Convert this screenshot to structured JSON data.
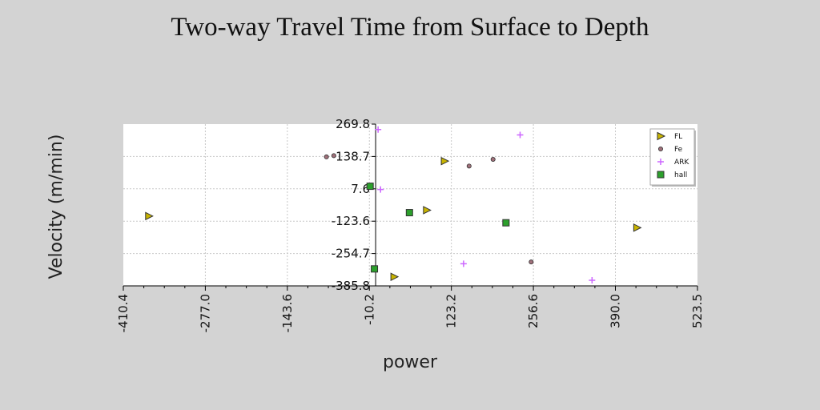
{
  "chart_data": {
    "type": "scatter",
    "title": "Two-way Travel Time from Surface to Depth",
    "xlabel": "power",
    "ylabel": "Velocity (m/min)",
    "xlim": [
      -410.4,
      523.5
    ],
    "ylim": [
      -385.8,
      269.8
    ],
    "x_ticks": [
      "-410.4",
      "-277.0",
      "-143.6",
      "-10.2",
      "123.2",
      "256.6",
      "390.0",
      "523.5"
    ],
    "y_ticks": [
      "269.8",
      "138.7",
      "7.6",
      "-123.6",
      "-254.7",
      "-385.8"
    ],
    "grid": true,
    "legend_position": "top-right",
    "series": [
      {
        "name": "FL",
        "marker": "triangle-right",
        "color": "#c8b400",
        "points": [
          [
            -369,
            -103
          ],
          [
            112,
            120
          ],
          [
            83,
            -79
          ],
          [
            425,
            -150
          ],
          [
            30,
            -349
          ]
        ]
      },
      {
        "name": "Fe",
        "marker": "circle",
        "color": "#a0707a",
        "points": [
          [
            -80,
            137
          ],
          [
            -68,
            142
          ],
          [
            152,
            100
          ],
          [
            191,
            127
          ],
          [
            253,
            -289
          ]
        ]
      },
      {
        "name": "ARK",
        "marker": "plus",
        "color": "#cc66ff",
        "points": [
          [
            4,
            248
          ],
          [
            8,
            5
          ],
          [
            235,
            226
          ],
          [
            143,
            -296
          ],
          [
            352,
            -363
          ]
        ]
      },
      {
        "name": "hall",
        "marker": "square",
        "color": "#2ca02c",
        "points": [
          [
            -9,
            18
          ],
          [
            -2,
            -317
          ],
          [
            55,
            -89
          ],
          [
            212,
            -130
          ]
        ]
      }
    ]
  }
}
